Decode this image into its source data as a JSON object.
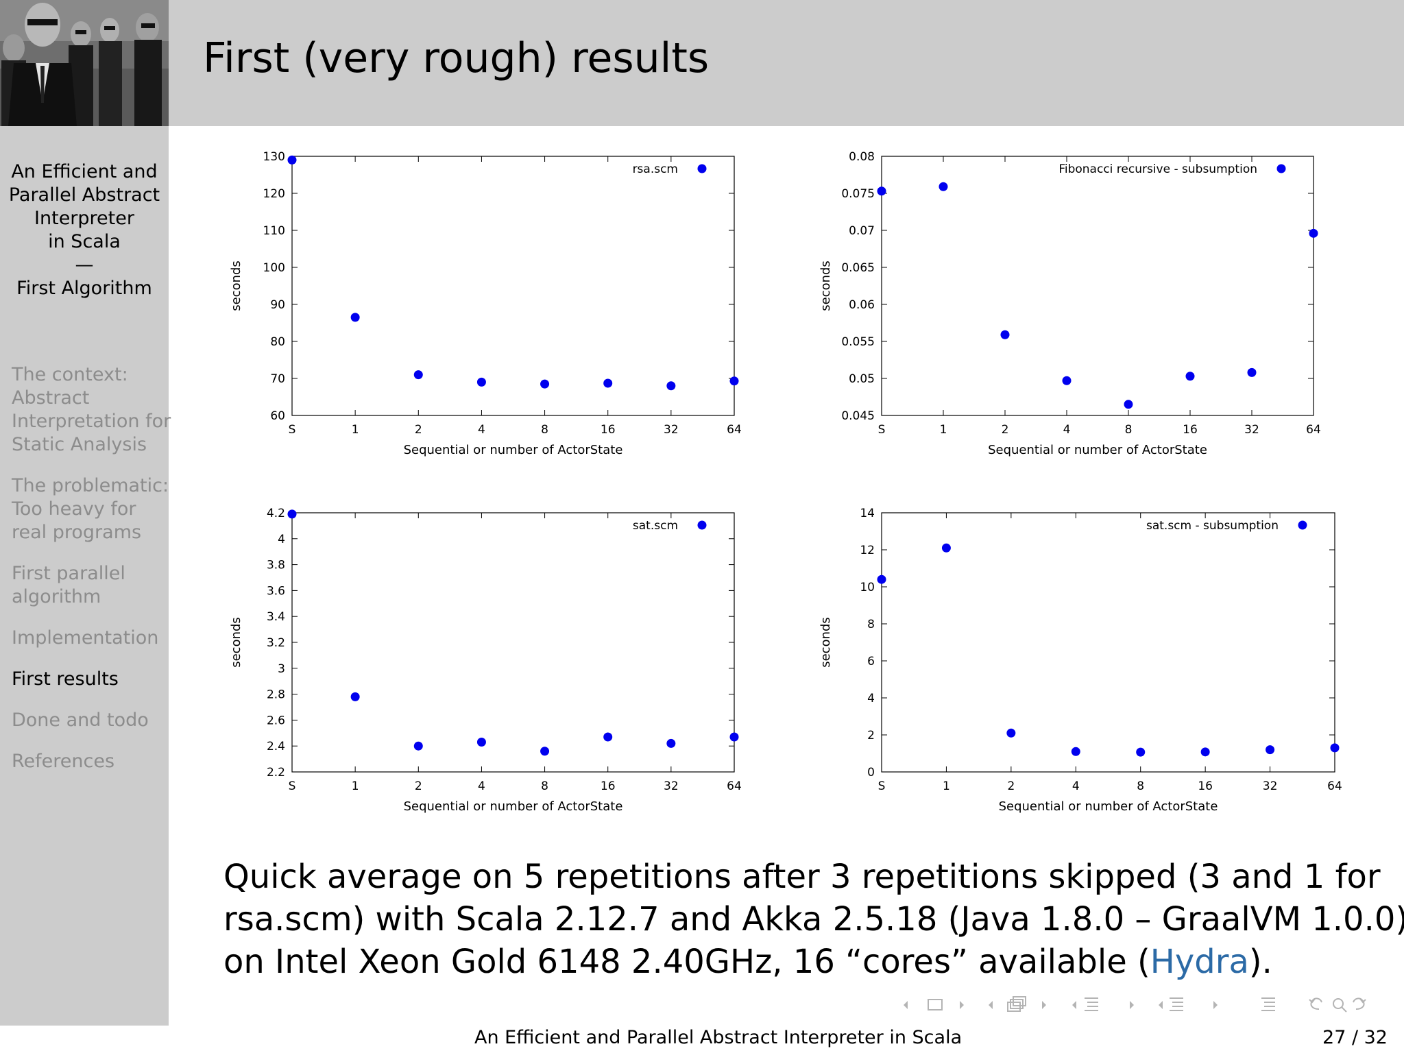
{
  "header": {
    "title": "First (very rough) results"
  },
  "sidebar": {
    "title_lines": [
      "An Efficient and",
      "Parallel Abstract",
      "Interpreter",
      "in Scala",
      "—",
      "First Algorithm"
    ],
    "sections": [
      {
        "lines": [
          "The context:",
          "Abstract",
          "Interpretation for",
          "Static Analysis"
        ],
        "active": false
      },
      {
        "lines": [
          "The problematic:",
          "Too heavy for",
          "real programs"
        ],
        "active": false
      },
      {
        "lines": [
          "First parallel",
          "algorithm"
        ],
        "active": false
      },
      {
        "lines": [
          "Implementation"
        ],
        "active": false
      },
      {
        "lines": [
          "First results"
        ],
        "active": true
      },
      {
        "lines": [
          "Done and todo"
        ],
        "active": false
      },
      {
        "lines": [
          "References"
        ],
        "active": false
      }
    ]
  },
  "colors": {
    "marker": "#0000ee",
    "sidebar_bg": "#cccccc",
    "link": "#2b6aa6",
    "inactive_text": "#8c8c8c"
  },
  "chart_data": [
    {
      "type": "scatter",
      "legend": "rsa.scm",
      "legend_placement": "top-right",
      "categories": [
        "S",
        "1",
        "2",
        "4",
        "8",
        "16",
        "32",
        "64"
      ],
      "values": [
        129,
        86.5,
        71,
        69,
        68.5,
        68.7,
        68,
        69.3
      ],
      "ylim": [
        60,
        130
      ],
      "yticks": [
        "60",
        "70",
        "80",
        "90",
        "100",
        "110",
        "120",
        "130"
      ],
      "ylabel": "seconds",
      "xlabel": "Sequential or number of ActorState"
    },
    {
      "type": "scatter",
      "legend": "Fibonacci recursive - subsumption",
      "legend_placement": "top-right",
      "categories": [
        "S",
        "1",
        "2",
        "4",
        "8",
        "16",
        "32",
        "64"
      ],
      "values": [
        0.0753,
        0.0759,
        0.0559,
        0.0497,
        0.0465,
        0.0503,
        0.0508,
        0.0696
      ],
      "ylim": [
        0.045,
        0.08
      ],
      "yticks": [
        "0.045",
        "0.05",
        "0.055",
        "0.06",
        "0.065",
        "0.07",
        "0.075",
        "0.08"
      ],
      "ylabel": "seconds",
      "xlabel": "Sequential or number of ActorState"
    },
    {
      "type": "scatter",
      "legend": "sat.scm",
      "legend_placement": "top-right",
      "categories": [
        "S",
        "1",
        "2",
        "4",
        "8",
        "16",
        "32",
        "64"
      ],
      "values": [
        4.19,
        2.78,
        2.4,
        2.43,
        2.36,
        2.47,
        2.42,
        2.47
      ],
      "ylim": [
        2.2,
        4.2
      ],
      "yticks": [
        "2.2",
        "2.4",
        "2.6",
        "2.8",
        "3",
        "3.2",
        "3.4",
        "3.6",
        "3.8",
        "4",
        "4.2"
      ],
      "ylabel": "seconds",
      "xlabel": "Sequential or number of ActorState"
    },
    {
      "type": "scatter",
      "legend": "sat.scm - subsumption",
      "legend_placement": "top-right",
      "categories": [
        "S",
        "1",
        "2",
        "4",
        "8",
        "16",
        "32",
        "64"
      ],
      "values": [
        10.4,
        12.1,
        2.1,
        1.1,
        1.07,
        1.08,
        1.2,
        1.3
      ],
      "ylim": [
        0,
        14
      ],
      "yticks": [
        "0",
        "2",
        "4",
        "6",
        "8",
        "10",
        "12",
        "14"
      ],
      "ylabel": "seconds",
      "xlabel": "Sequential or number of ActorState"
    }
  ],
  "caption": {
    "line1": "Quick average on 5 repetitions after 3 repetitions skipped (3 and 1 for",
    "line2": "rsa.scm) with Scala 2.12.7 and Akka 2.5.18 (Java 1.8.0 – GraalVM 1.0.0)",
    "line3_before": "on Intel Xeon Gold 6148 2.40GHz, 16 “cores” available (",
    "line3_link": "Hydra",
    "line3_after": ")."
  },
  "footer": {
    "title": "An Efficient and Parallel Abstract Interpreter in Scala",
    "page": "27 / 32"
  }
}
